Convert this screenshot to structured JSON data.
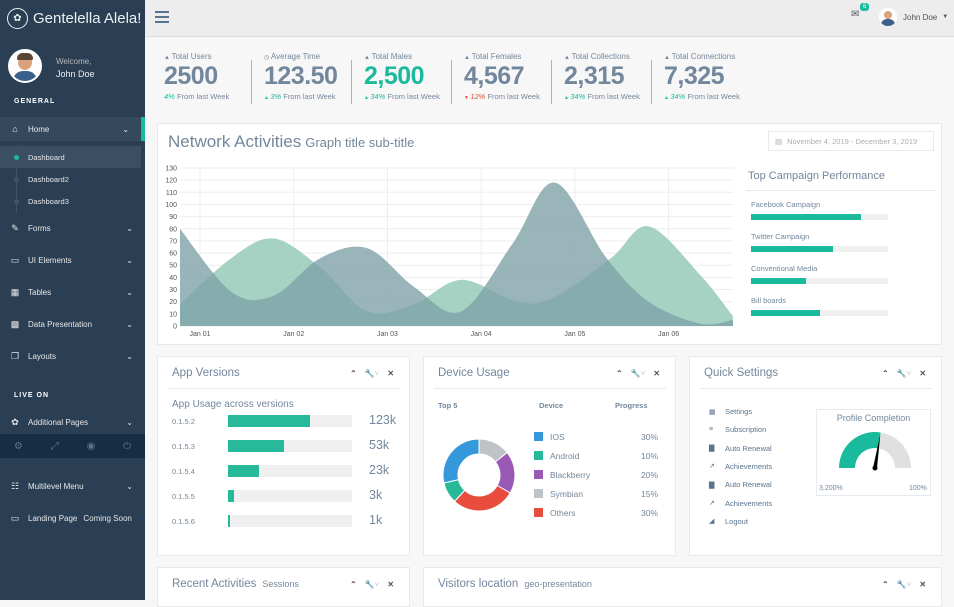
{
  "brand": {
    "name": "Gentelella Alela!",
    "icon": "paw-icon"
  },
  "profile": {
    "welcome": "Welcome,",
    "name": "John Doe"
  },
  "sidebar": {
    "section_general": "GENERAL",
    "section_live": "LIVE ON",
    "items": [
      {
        "label": "Home",
        "icon": "home-icon"
      },
      {
        "label": "Forms",
        "icon": "edit-icon"
      },
      {
        "label": "UI Elements",
        "icon": "desktop-icon"
      },
      {
        "label": "Tables",
        "icon": "table-icon"
      },
      {
        "label": "Data Presentation",
        "icon": "bar-chart-icon"
      },
      {
        "label": "Layouts",
        "icon": "clone-icon"
      },
      {
        "label": "Additional Pages",
        "icon": "bug-icon"
      },
      {
        "label": "Multilevel Menu",
        "icon": "sitemap-icon"
      },
      {
        "label": "Landing Page",
        "icon": "laptop-icon",
        "badge": "Coming Soon"
      }
    ],
    "home_sub": [
      "Dashboard",
      "Dashboard2",
      "Dashboard3"
    ]
  },
  "topnav": {
    "mail_count": "6",
    "user": "John Doe"
  },
  "stats": [
    {
      "label": "Total Users",
      "icon": "user-icon",
      "value": "2500",
      "change": "4%",
      "suffix": "From last Week",
      "trend": "none",
      "value_green": false
    },
    {
      "label": "Average Time",
      "icon": "clock-icon",
      "value": "123.50",
      "change": "3%",
      "suffix": "From last Week",
      "trend": "up",
      "value_green": false
    },
    {
      "label": "Total Males",
      "icon": "user-icon",
      "value": "2,500",
      "change": "34%",
      "suffix": "From last Week",
      "trend": "up",
      "value_green": true
    },
    {
      "label": "Total Females",
      "icon": "user-icon",
      "value": "4,567",
      "change": "12%",
      "suffix": "From last Week",
      "trend": "down",
      "value_green": false
    },
    {
      "label": "Total Collections",
      "icon": "user-icon",
      "value": "2,315",
      "change": "34%",
      "suffix": "From last Week",
      "trend": "up",
      "value_green": false
    },
    {
      "label": "Total Connections",
      "icon": "user-icon",
      "value": "7,325",
      "change": "34%",
      "suffix": "From last Week",
      "trend": "up",
      "value_green": false
    }
  ],
  "network": {
    "title": "Network Activities",
    "subtitle": "Graph title sub-title",
    "date_range": "November 4, 2019 - December 3, 2019"
  },
  "chart_data": {
    "type": "area",
    "x": [
      "Jan 01",
      "Jan 02",
      "Jan 03",
      "Jan 04",
      "Jan 05",
      "Jan 06"
    ],
    "ylim": [
      0,
      130
    ],
    "yticks": [
      0,
      10,
      20,
      30,
      40,
      50,
      60,
      70,
      80,
      90,
      100,
      110,
      120,
      130
    ],
    "series": [
      {
        "color": "#96CAB8",
        "points": [
          [
            0,
            18
          ],
          [
            0.55,
            56
          ],
          [
            1.0,
            72
          ],
          [
            1.5,
            48
          ],
          [
            2.0,
            12
          ],
          [
            2.5,
            18
          ],
          [
            3.0,
            38
          ],
          [
            3.6,
            20
          ],
          [
            4.0,
            24
          ],
          [
            4.6,
            56
          ],
          [
            5.0,
            82
          ],
          [
            5.55,
            42
          ],
          [
            5.9,
            8
          ]
        ]
      },
      {
        "color": "#7FA3A8",
        "points": [
          [
            0,
            80
          ],
          [
            0.55,
            28
          ],
          [
            1.0,
            25
          ],
          [
            1.5,
            56
          ],
          [
            2.0,
            64
          ],
          [
            2.5,
            32
          ],
          [
            3.0,
            12
          ],
          [
            3.55,
            68
          ],
          [
            4.0,
            118
          ],
          [
            4.55,
            56
          ],
          [
            5.0,
            20
          ],
          [
            5.55,
            2
          ],
          [
            5.9,
            5
          ]
        ]
      }
    ],
    "grid": true
  },
  "campaign": {
    "title": "Top Campaign Performance",
    "items": [
      {
        "label": "Facebook Campaign",
        "value": 80
      },
      {
        "label": "Twitter Campaign",
        "value": 60
      },
      {
        "label": "Conventional Media",
        "value": 40
      },
      {
        "label": "Bill boards",
        "value": 50
      }
    ]
  },
  "app_versions": {
    "title": "App Versions",
    "subtitle": "App Usage across versions",
    "rows": [
      {
        "version": "0.1.5.2",
        "value": "123k",
        "fraction": 0.66
      },
      {
        "version": "0.1.5.3",
        "value": "53k",
        "fraction": 0.45
      },
      {
        "version": "0.1.5.4",
        "value": "23k",
        "fraction": 0.25
      },
      {
        "version": "0.1.5.5",
        "value": "3k",
        "fraction": 0.05
      },
      {
        "version": "0.1.5.6",
        "value": "1k",
        "fraction": 0.02
      }
    ]
  },
  "device_usage": {
    "title": "Device Usage",
    "headers": [
      "Top 5",
      "Device",
      "Progress"
    ],
    "items": [
      {
        "name": "IOS",
        "percent": "30%",
        "value": 30,
        "color": "#3498DB"
      },
      {
        "name": "Android",
        "percent": "10%",
        "value": 10,
        "color": "#26B99A"
      },
      {
        "name": "Blackberry",
        "percent": "20%",
        "value": 20,
        "color": "#9B59B6"
      },
      {
        "name": "Symbian",
        "percent": "15%",
        "value": 15,
        "color": "#BDC3C7"
      },
      {
        "name": "Others",
        "percent": "30%",
        "value": 30,
        "color": "#E74C3C"
      }
    ]
  },
  "quick_settings": {
    "title": "Quick Settings",
    "items": [
      {
        "label": "Settings",
        "icon": "calendar-icon"
      },
      {
        "label": "Subscription",
        "icon": "bars-icon"
      },
      {
        "label": "Auto Renewal",
        "icon": "bar-chart-icon"
      },
      {
        "label": "Achievements",
        "icon": "line-chart-icon"
      },
      {
        "label": "Auto Renewal",
        "icon": "bar-chart-icon"
      },
      {
        "label": "Achievements",
        "icon": "line-chart-icon"
      },
      {
        "label": "Logout",
        "icon": "area-chart-icon"
      }
    ],
    "profile_completion": {
      "title": "Profile Completion",
      "min": "3,200%",
      "max": "100%",
      "fraction": 0.55
    }
  },
  "recent": {
    "title": "Recent Activities",
    "subtitle": "Sessions"
  },
  "visitors": {
    "title": "Visitors location",
    "subtitle": "geo-presentation"
  },
  "colors": {
    "sidebar": "#2A3F54",
    "accent": "#1ABB9C",
    "bg": "#F7F7F7"
  }
}
